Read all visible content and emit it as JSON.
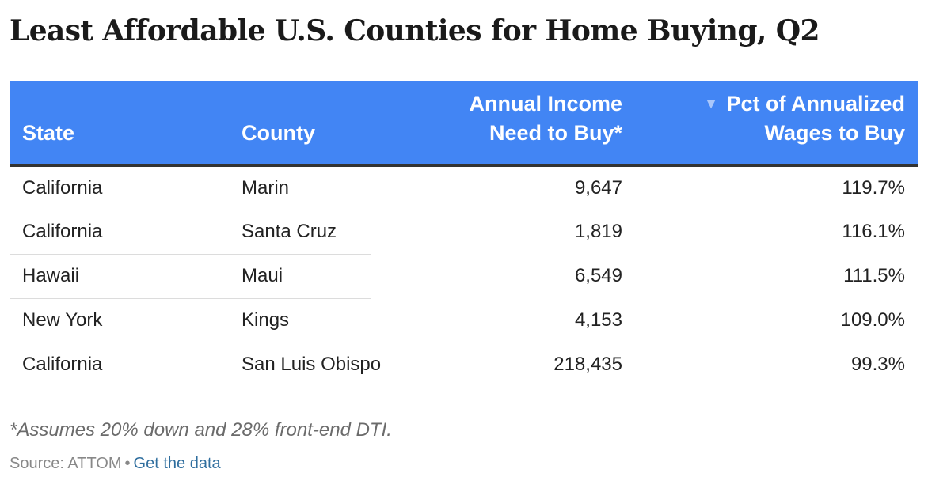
{
  "chart_data": {
    "type": "table",
    "title": "Least Affordable U.S. Counties for Home Buying, Q2",
    "columns": [
      {
        "key": "state",
        "label_lines": [
          "State"
        ],
        "align": "left"
      },
      {
        "key": "county",
        "label_lines": [
          "County"
        ],
        "align": "left"
      },
      {
        "key": "income",
        "label_lines": [
          "Annual Income",
          "Need to Buy*"
        ],
        "align": "right"
      },
      {
        "key": "pct",
        "label_lines": [
          "Pct of Annualized",
          "Wages to Buy"
        ],
        "align": "right",
        "sorted": "descending",
        "sort_icon": "triangle-down-icon"
      }
    ],
    "rows": [
      {
        "state": "California",
        "county": "Marin",
        "income": "9,647",
        "pct": "119.7%"
      },
      {
        "state": "California",
        "county": "Santa Cruz",
        "income": "1,819",
        "pct": "116.1%"
      },
      {
        "state": "Hawaii",
        "county": "Maui",
        "income": "6,549",
        "pct": "111.5%"
      },
      {
        "state": "New York",
        "county": "Kings",
        "income": "4,153",
        "pct": "109.0%"
      },
      {
        "state": "California",
        "county": "San Luis Obispo",
        "income": "218,435",
        "pct": "99.3%"
      }
    ],
    "header_color": "#4285f4"
  },
  "footer": {
    "note": "*Assumes 20% down and 28% front-end DTI.",
    "source_label": "Source: ATTOM",
    "separator": "•",
    "link_label": "Get the data"
  }
}
